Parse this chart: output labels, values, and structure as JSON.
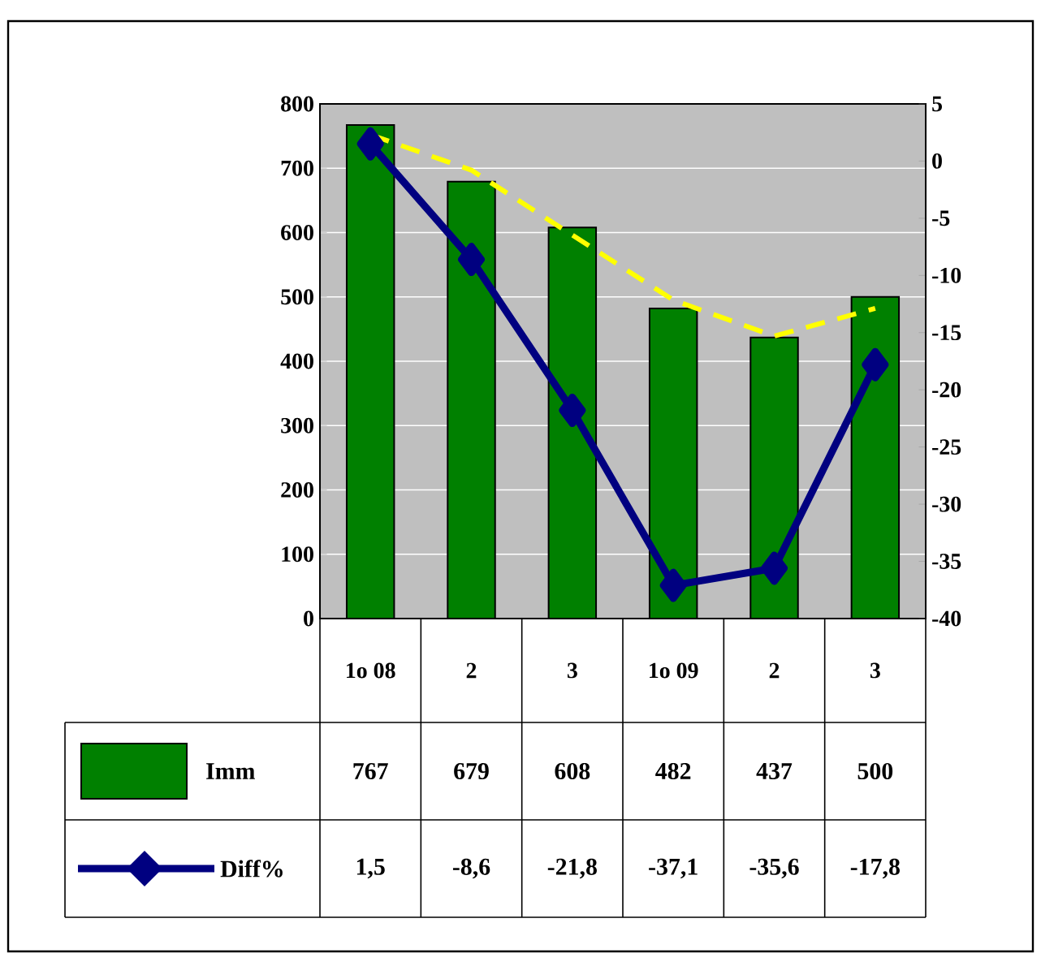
{
  "chart_data": {
    "type": "bar",
    "categories": [
      "1o 08",
      "2",
      "3",
      "1o 09",
      "2",
      "3"
    ],
    "series": [
      {
        "name": "Imm",
        "type": "bar",
        "color": "#008000",
        "values": [
          767,
          679,
          608,
          482,
          437,
          500
        ],
        "value_labels": [
          "767",
          "679",
          "608",
          "482",
          "437",
          "500"
        ]
      },
      {
        "name": "Diff%",
        "type": "line",
        "axis": "y2",
        "color": "#000080",
        "marker": "diamond",
        "values": [
          1.5,
          -8.6,
          -21.8,
          -37.1,
          -35.6,
          -17.8
        ],
        "value_labels": [
          "1,5",
          "-8,6",
          "-21,8",
          "-37,1",
          "-35,6",
          "-17,8"
        ]
      },
      {
        "type": "line",
        "color": "#ffff00",
        "line_style": "dashed",
        "marker": "none",
        "values": [
          752,
          697,
          596,
          495,
          439,
          482
        ]
      }
    ],
    "ylim": [
      0,
      800
    ],
    "yticks": [
      0,
      100,
      200,
      300,
      400,
      500,
      600,
      700,
      800
    ],
    "y2lim": [
      -40,
      5
    ],
    "y2ticks": [
      -40,
      -35,
      -30,
      -25,
      -20,
      -15,
      -10,
      -5,
      0,
      5
    ],
    "grid": "y",
    "legend": "bottom"
  }
}
